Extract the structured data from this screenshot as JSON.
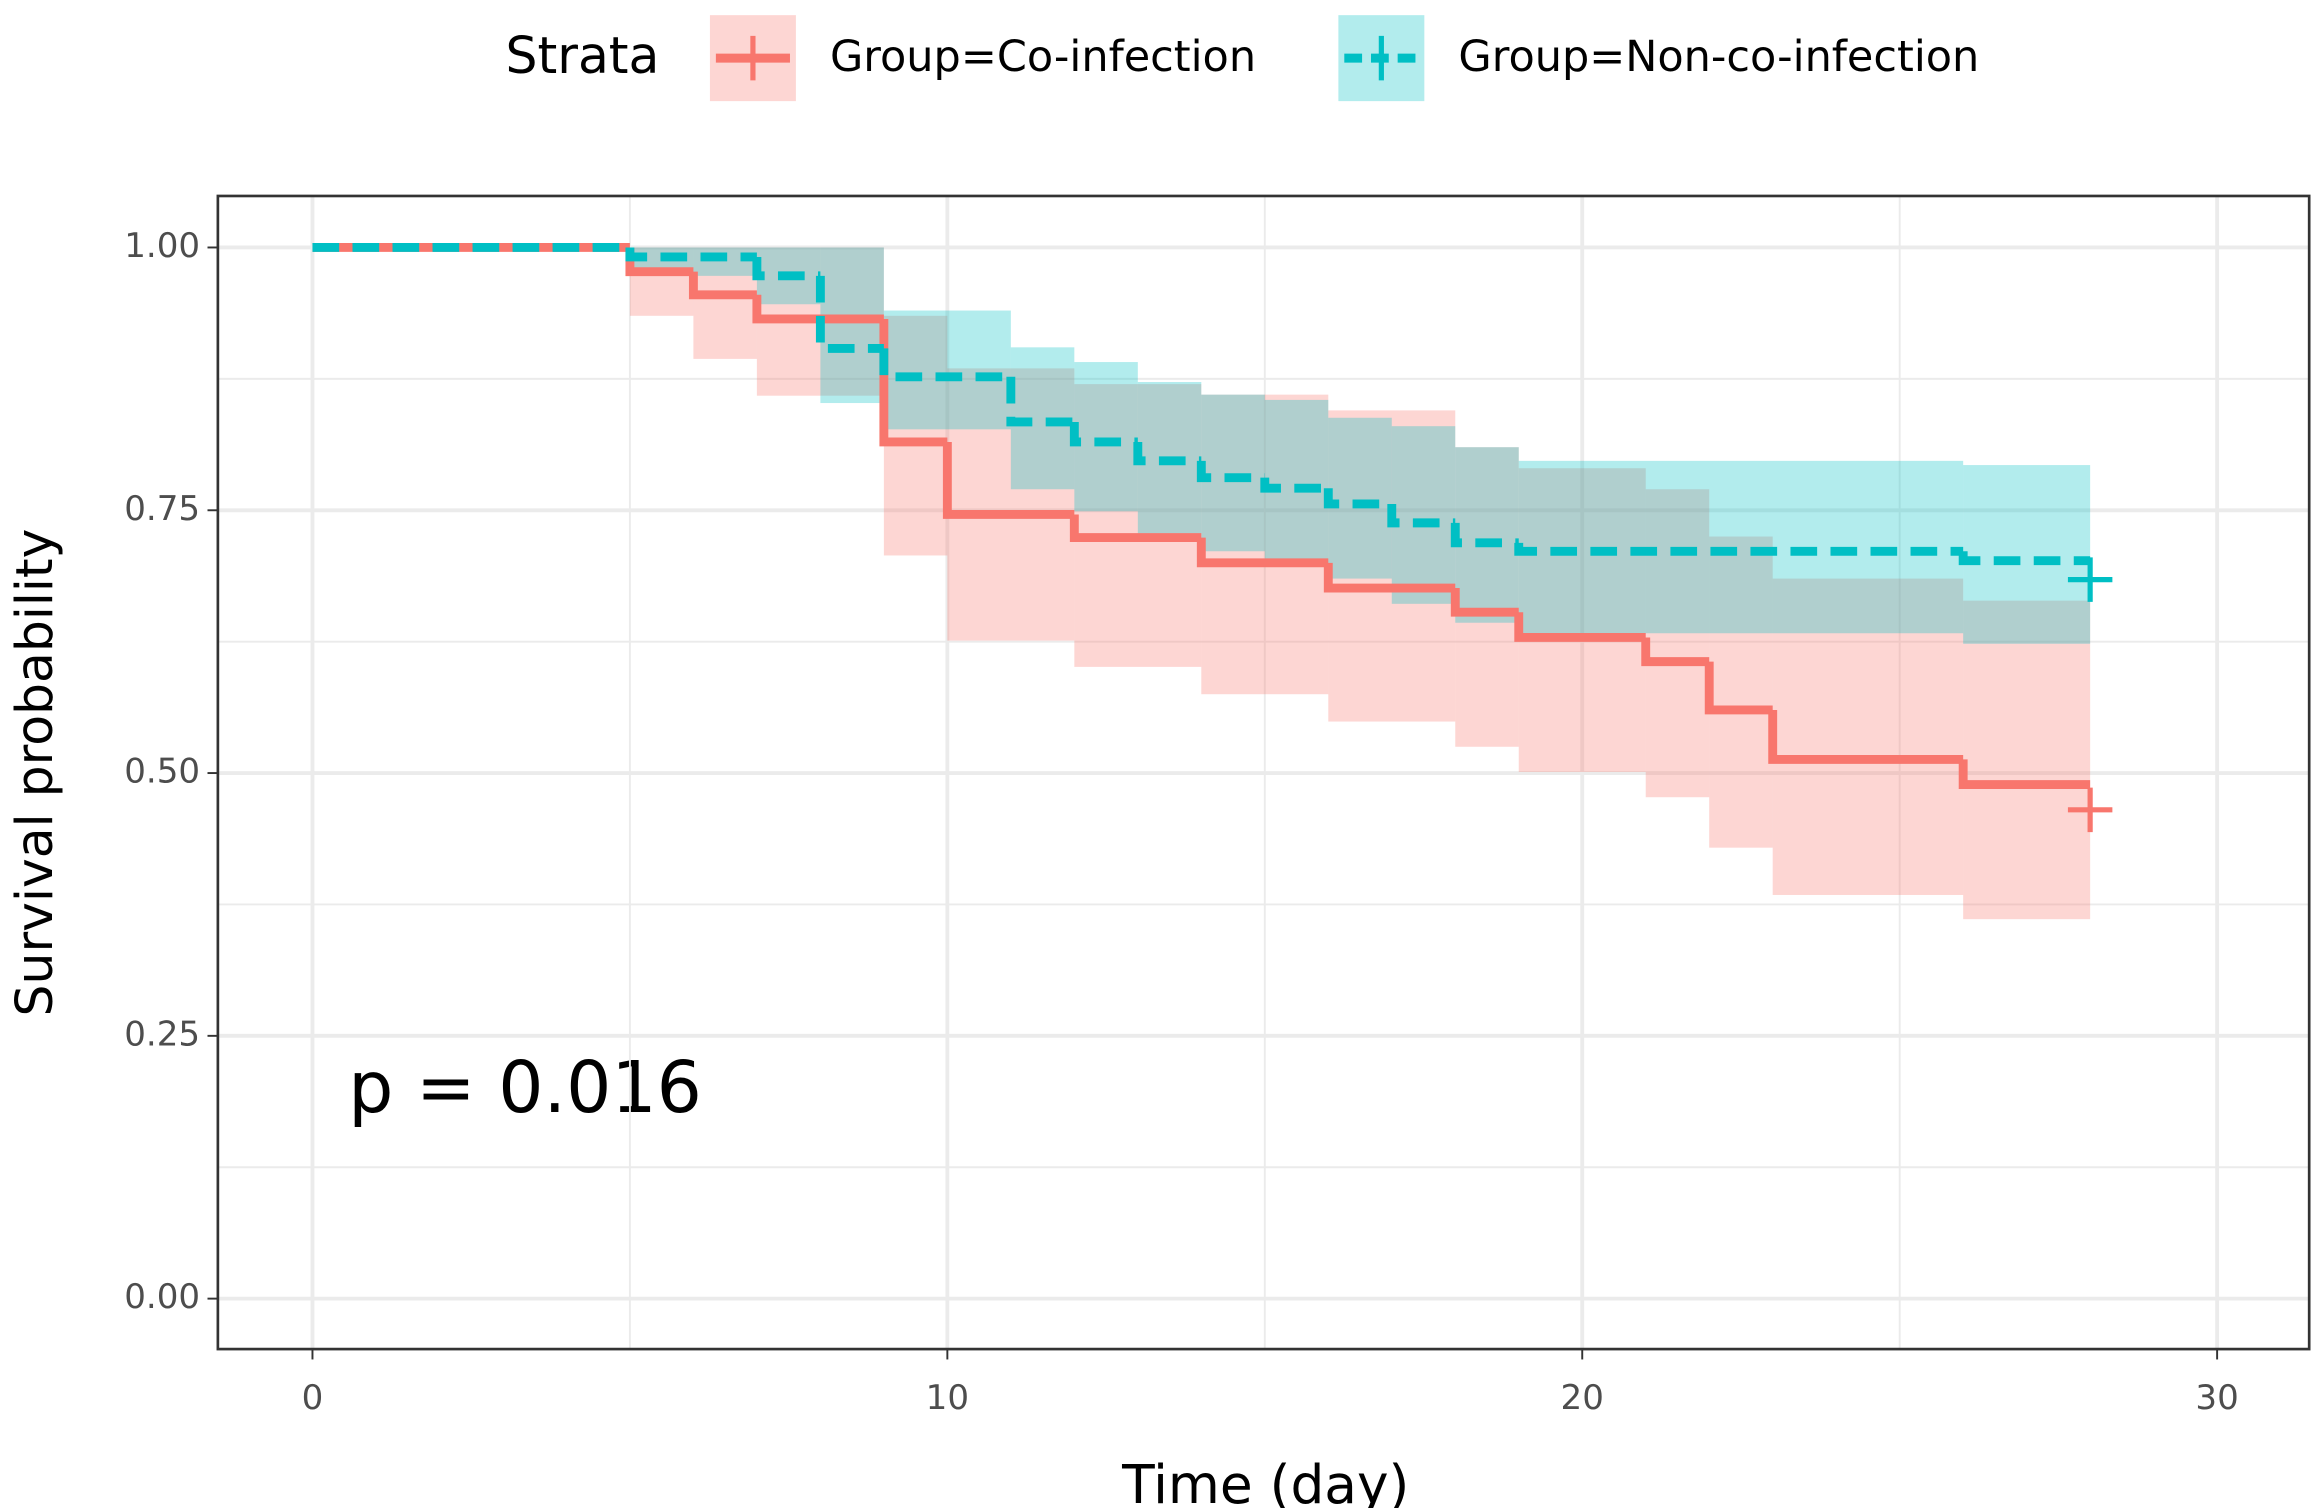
{
  "chart_data": {
    "type": "step",
    "xlabel": "Time (day)",
    "ylabel": "Survival probability",
    "legend_title": "Strata",
    "annotation": "p = 0.016",
    "xlim": [
      -1.49,
      31.45
    ],
    "ylim": [
      -0.048,
      1.049
    ],
    "xticks": [
      0,
      10,
      20,
      30
    ],
    "yticks": [
      {
        "value": 0,
        "label": "0.00"
      },
      {
        "value": 0.25,
        "label": "0.25"
      },
      {
        "value": 0.5,
        "label": "0.50"
      },
      {
        "value": 0.75,
        "label": "0.75"
      },
      {
        "value": 1,
        "label": "1.00"
      }
    ],
    "x_minor_ticks": [
      5,
      15,
      25
    ],
    "y_minor_ticks": [
      0.125,
      0.375,
      0.625,
      0.875
    ],
    "grid": true,
    "legend": "top",
    "series": [
      {
        "name": "Group=Co-infection",
        "color": "#F8766D",
        "dashed": false,
        "x": [
          0,
          5,
          6,
          7,
          9,
          10,
          12,
          14,
          16,
          18,
          19,
          21,
          22,
          23,
          26,
          28
        ],
        "values": [
          1,
          0.977,
          0.955,
          0.932,
          0.815,
          0.746,
          0.724,
          0.7,
          0.676,
          0.653,
          0.629,
          0.606,
          0.56,
          0.513,
          0.489,
          0.489
        ],
        "upper": [
          1,
          1,
          1,
          1,
          0.935,
          0.885,
          0.87,
          0.86,
          0.845,
          0.81,
          0.79,
          0.77,
          0.725,
          0.685,
          0.664,
          0.664
        ],
        "lower": [
          1,
          0.935,
          0.894,
          0.859,
          0.707,
          0.626,
          0.601,
          0.575,
          0.549,
          0.525,
          0.501,
          0.477,
          0.429,
          0.384,
          0.361,
          0.361
        ],
        "censor": {
          "x": 28,
          "y": 0.465
        }
      },
      {
        "name": "Group=Non-co-infection",
        "color": "#00BFC4",
        "dashed": true,
        "x": [
          0,
          5,
          7,
          8,
          9,
          11,
          12,
          13,
          14,
          15,
          16,
          17,
          18,
          19,
          26,
          28
        ],
        "values": [
          1,
          0.991,
          0.973,
          0.904,
          0.877,
          0.834,
          0.815,
          0.797,
          0.781,
          0.771,
          0.756,
          0.738,
          0.719,
          0.711,
          0.702,
          0.702
        ],
        "upper": [
          1,
          1,
          1,
          1,
          0.94,
          0.905,
          0.891,
          0.872,
          0.86,
          0.855,
          0.838,
          0.83,
          0.81,
          0.797,
          0.793,
          0.793
        ],
        "lower": [
          1,
          0.973,
          0.946,
          0.852,
          0.827,
          0.77,
          0.749,
          0.728,
          0.711,
          0.7,
          0.685,
          0.661,
          0.643,
          0.633,
          0.623,
          0.623
        ],
        "censor": {
          "x": 28,
          "y": 0.684
        }
      }
    ]
  }
}
